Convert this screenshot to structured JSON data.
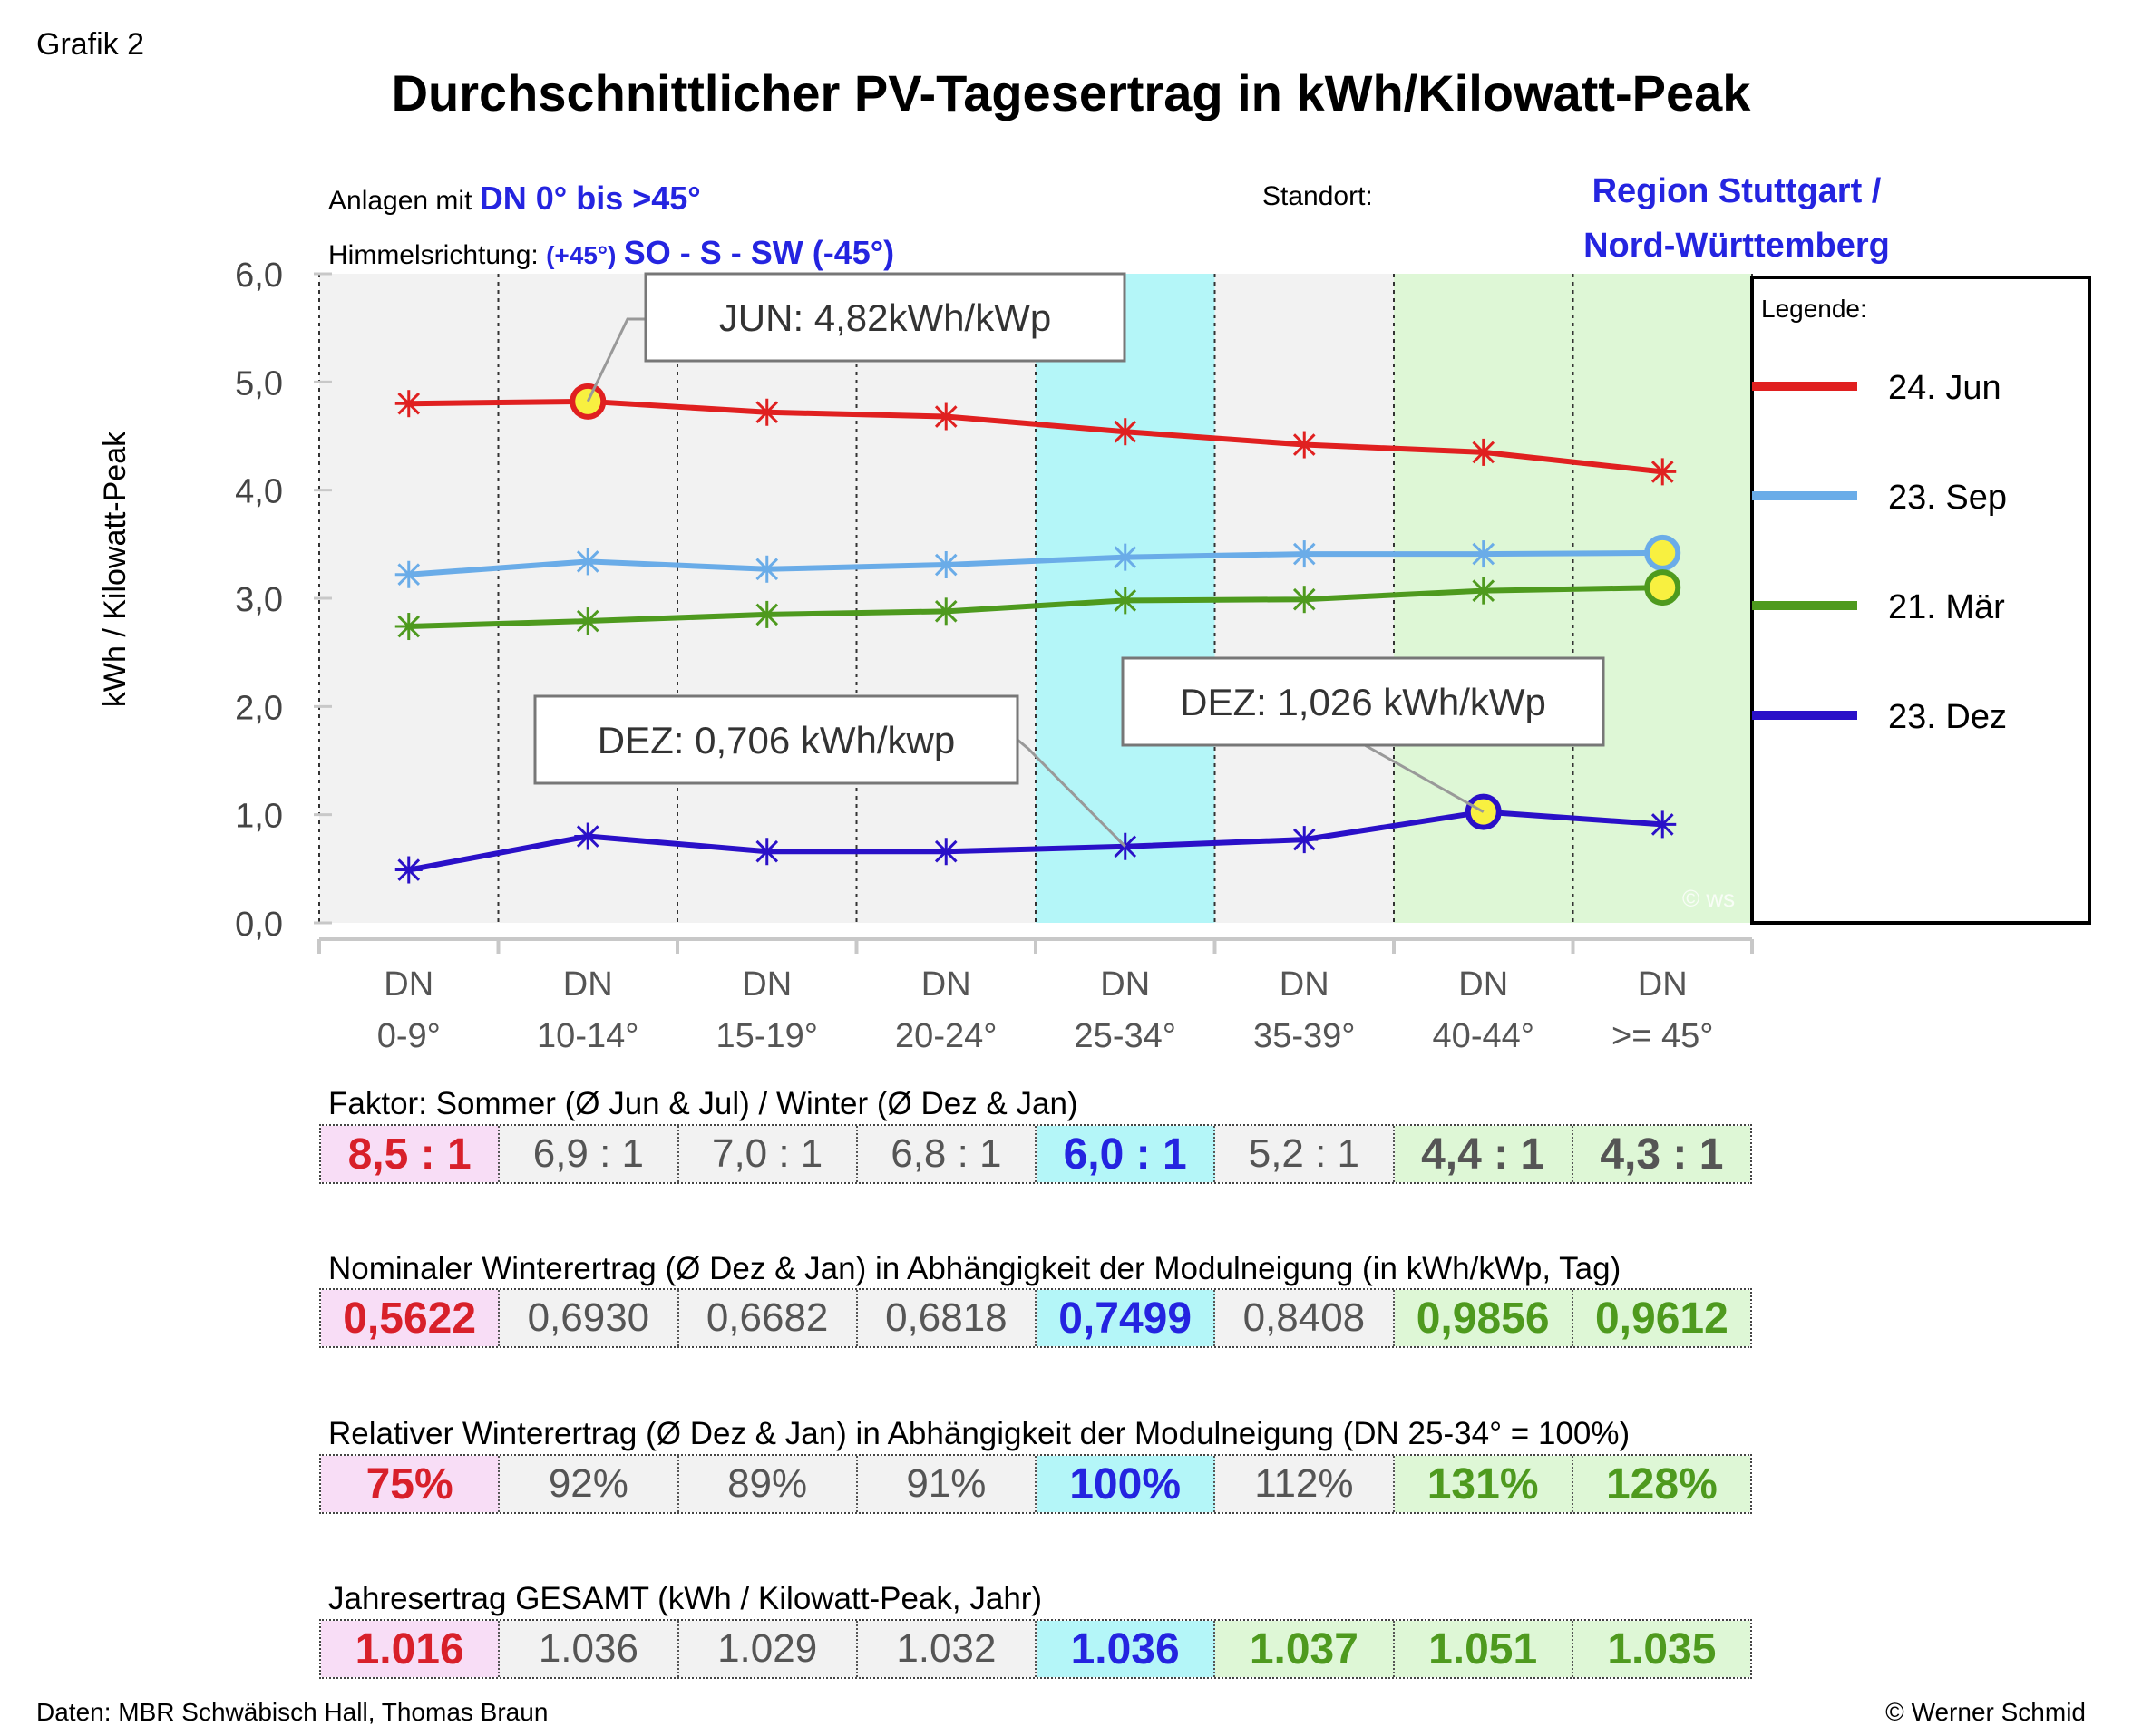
{
  "grafik_label": "Grafik 2",
  "title": "Durchschnittlicher PV-Tagesertrag in kWh/Kilowatt-Peak",
  "info": {
    "anlagen_prefix": "Anlagen mit",
    "anlagen_value": "DN 0° bis >45°",
    "himmel_prefix": "Himmelsrichtung:",
    "himmel_small": "(+45°)",
    "himmel_value": "SO - S - SW (-45°)",
    "standort_label": "Standort:",
    "region_line1": "Region Stuttgart /",
    "region_line2": "Nord-Württemberg"
  },
  "legend": {
    "title": "Legende:",
    "entries": [
      {
        "label": "24. Jun",
        "color": "#e02020"
      },
      {
        "label": "23. Sep",
        "color": "#6aace8"
      },
      {
        "label": "21. Mär",
        "color": "#4e9a1e"
      },
      {
        "label": "23. Dez",
        "color": "#2a10c8"
      }
    ]
  },
  "chart_data": {
    "type": "line",
    "ylabel": "kWh / Kilowatt-Peak",
    "ylim": [
      0,
      6
    ],
    "y_ticks": [
      "0,0",
      "1,0",
      "2,0",
      "3,0",
      "4,0",
      "5,0",
      "6,0"
    ],
    "categories_line1": [
      "DN",
      "DN",
      "DN",
      "DN",
      "DN",
      "DN",
      "DN",
      "DN"
    ],
    "categories_line2": [
      "0-9°",
      "10-14°",
      "15-19°",
      "20-24°",
      "25-34°",
      "35-39°",
      "40-44°",
      ">= 45°"
    ],
    "series": [
      {
        "name": "24. Jun",
        "color": "#e02020",
        "values": [
          4.8,
          4.82,
          4.72,
          4.68,
          4.54,
          4.42,
          4.35,
          4.17
        ]
      },
      {
        "name": "23. Sep",
        "color": "#6aace8",
        "values": [
          3.22,
          3.34,
          3.27,
          3.31,
          3.38,
          3.41,
          3.41,
          3.42
        ]
      },
      {
        "name": "21. Mär",
        "color": "#4e9a1e",
        "values": [
          2.74,
          2.79,
          2.85,
          2.88,
          2.98,
          2.99,
          3.07,
          3.1
        ]
      },
      {
        "name": "23. Dez",
        "color": "#2a10c8",
        "values": [
          0.49,
          0.8,
          0.66,
          0.66,
          0.706,
          0.77,
          1.026,
          0.91
        ]
      }
    ],
    "highlights": [
      {
        "series": 0,
        "index": 1
      },
      {
        "series": 1,
        "index": 7
      },
      {
        "series": 2,
        "index": 7
      },
      {
        "series": 3,
        "index": 6
      }
    ],
    "annotations": [
      {
        "text": "JUN: 4,82kWh/kWp",
        "series": 0,
        "index": 1
      },
      {
        "text": "DEZ: 0,706 kWh/kwp",
        "series": 3,
        "index": 4
      },
      {
        "text": "DEZ: 1,026 kWh/kWp",
        "series": 3,
        "index": 6
      }
    ],
    "watermark": "© ws"
  },
  "tables": [
    {
      "label": "Faktor:  Sommer (Ø  Jun & Jul) / Winter (Ø Dez & Jan)",
      "values": [
        "8,5 : 1",
        "6,9 : 1",
        "7,0 : 1",
        "6,8 : 1",
        "6,0 : 1",
        "5,2 : 1",
        "4,4 : 1",
        "4,3 : 1"
      ],
      "styles": [
        "red",
        "plain",
        "plain",
        "plain",
        "blue",
        "plain",
        "darkgrey",
        "darkgrey"
      ]
    },
    {
      "label": "Nominaler Winterertrag (Ø Dez & Jan) in Abhängigkeit der Modulneigung (in kWh/kWp, Tag)",
      "values": [
        "0,5622",
        "0,6930",
        "0,6682",
        "0,6818",
        "0,7499",
        "0,8408",
        "0,9856",
        "0,9612"
      ],
      "styles": [
        "red",
        "plain",
        "plain",
        "plain",
        "blue",
        "plain",
        "green",
        "green"
      ]
    },
    {
      "label": "Relativer Winterertrag (Ø Dez & Jan) in Abhängigkeit der Modulneigung (DN 25-34° = 100%)",
      "values": [
        "75%",
        "92%",
        "89%",
        "91%",
        "100%",
        "112%",
        "131%",
        "128%"
      ],
      "styles": [
        "red",
        "plain",
        "plain",
        "plain",
        "blue",
        "plain",
        "green",
        "green"
      ]
    },
    {
      "label": "Jahresertrag GESAMT  (kWh / Kilowatt-Peak, Jahr)",
      "values": [
        "1.016",
        "1.036",
        "1.029",
        "1.032",
        "1.036",
        "1.037",
        "1.051",
        "1.035"
      ],
      "styles": [
        "red",
        "plain",
        "plain",
        "plain",
        "blue",
        "green",
        "green",
        "green"
      ]
    }
  ],
  "footer": {
    "left": "Daten: MBR Schwäbisch Hall, Thomas Braun",
    "right": "© Werner Schmid"
  }
}
